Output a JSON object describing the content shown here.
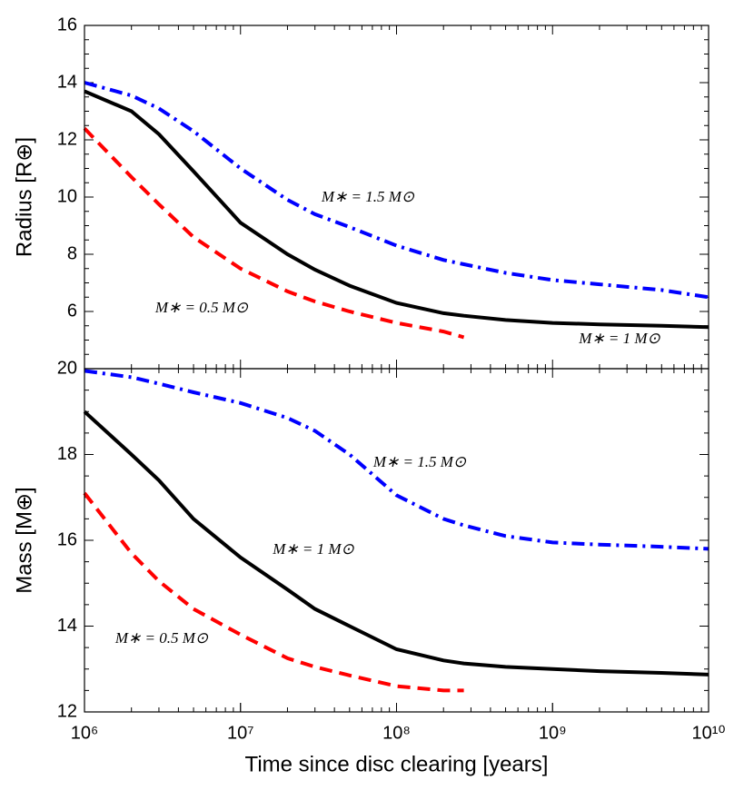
{
  "chart_data": [
    {
      "type": "line",
      "ylabel": "Radius [R⊕]",
      "xscale": "log",
      "x": [
        1000000,
        2000000,
        3000000,
        5000000,
        10000000,
        20000000,
        30000000,
        50000000,
        100000000,
        200000000,
        270000000,
        500000000,
        1000000000,
        2000000000,
        5000000000,
        10000000000
      ],
      "series": [
        {
          "name": "M∗ = 1 M⊙",
          "color": "#000000",
          "style": "solid",
          "values": [
            13.7,
            13.0,
            12.2,
            10.9,
            9.1,
            8.0,
            7.46,
            6.9,
            6.3,
            5.94,
            5.85,
            5.7,
            5.6,
            5.55,
            5.5,
            5.45
          ]
        },
        {
          "name": "M∗ = 1.5 M⊙",
          "color": "#0000ff",
          "style": "dashdot",
          "values": [
            14.0,
            13.55,
            13.1,
            12.3,
            11.0,
            9.9,
            9.4,
            8.95,
            8.3,
            7.8,
            7.65,
            7.35,
            7.1,
            6.95,
            6.75,
            6.5
          ]
        },
        {
          "name": "M∗ = 0.5 M⊙",
          "color": "#ff0000",
          "style": "dashed",
          "values": [
            12.4,
            10.7,
            9.75,
            8.6,
            7.5,
            6.7,
            6.35,
            6.0,
            5.6,
            5.3,
            5.1,
            null,
            null,
            null,
            null,
            null
          ]
        }
      ],
      "xlim": [
        1000000,
        10000000000
      ],
      "ylim": [
        4,
        16
      ],
      "yticks": [
        6,
        8,
        10,
        12,
        14,
        16
      ]
    },
    {
      "type": "line",
      "ylabel": "Mass [M⊕]",
      "xlabel": "Time since disc clearing [years]",
      "xscale": "log",
      "x": [
        1000000,
        2000000,
        3000000,
        5000000,
        10000000,
        20000000,
        30000000,
        50000000,
        100000000,
        200000000,
        270000000,
        500000000,
        1000000000,
        2000000000,
        5000000000,
        10000000000
      ],
      "series": [
        {
          "name": "M∗ = 1 M⊙",
          "color": "#000000",
          "style": "solid",
          "values": [
            19.0,
            18.0,
            17.4,
            16.5,
            15.6,
            14.85,
            14.4,
            14.0,
            13.46,
            13.2,
            13.13,
            13.05,
            13.0,
            12.95,
            12.91,
            12.87
          ]
        },
        {
          "name": "M∗ = 1.5 M⊙",
          "color": "#0000ff",
          "style": "dashdot",
          "values": [
            19.95,
            19.8,
            19.65,
            19.45,
            19.2,
            18.85,
            18.55,
            18.0,
            17.05,
            16.5,
            16.35,
            16.1,
            15.95,
            15.9,
            15.85,
            15.8
          ]
        },
        {
          "name": "M∗ = 0.5 M⊙",
          "color": "#ff0000",
          "style": "dashed",
          "values": [
            17.1,
            15.7,
            15.05,
            14.4,
            13.8,
            13.25,
            13.05,
            12.85,
            12.6,
            12.5,
            12.5,
            null,
            null,
            null,
            null,
            null
          ]
        }
      ],
      "xlim": [
        1000000,
        10000000000
      ],
      "ylim": [
        12,
        20
      ],
      "yticks": [
        12,
        14,
        16,
        18,
        20
      ],
      "xticks": [
        {
          "value": 1000000,
          "label": "10⁶"
        },
        {
          "value": 10000000,
          "label": "10⁷"
        },
        {
          "value": 100000000,
          "label": "10⁸"
        },
        {
          "value": 1000000000,
          "label": "10⁹"
        },
        {
          "value": 10000000000,
          "label": "10¹⁰"
        }
      ]
    }
  ]
}
